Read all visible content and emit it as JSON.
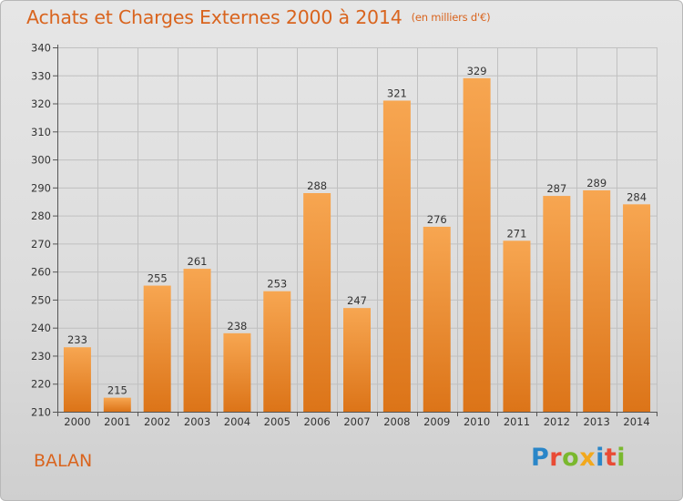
{
  "header": {
    "title": "Achats et Charges Externes 2000 à 2014",
    "unit": "(en milliers d'€)"
  },
  "footer": {
    "place": "BALAN",
    "logo_text": "Proxiti"
  },
  "colors": {
    "accent": "#d9641e",
    "bar_top": "#f7a651",
    "bar_bottom": "#dc7418",
    "grid": "#c0c0c0"
  },
  "chart_data": {
    "type": "bar",
    "title": "Achats et Charges Externes 2000 à 2014",
    "subtitle": "(en milliers d'€)",
    "xlabel": "",
    "ylabel": "",
    "categories": [
      "2000",
      "2001",
      "2002",
      "2003",
      "2004",
      "2005",
      "2006",
      "2007",
      "2008",
      "2009",
      "2010",
      "2011",
      "2012",
      "2013",
      "2014"
    ],
    "values": [
      233,
      215,
      255,
      261,
      238,
      253,
      288,
      247,
      321,
      276,
      329,
      271,
      287,
      289,
      284
    ],
    "ylim": [
      210,
      340
    ],
    "yticks": [
      210,
      220,
      230,
      240,
      250,
      260,
      270,
      280,
      290,
      300,
      310,
      320,
      330,
      340
    ],
    "grid": true,
    "data_labels": true
  }
}
